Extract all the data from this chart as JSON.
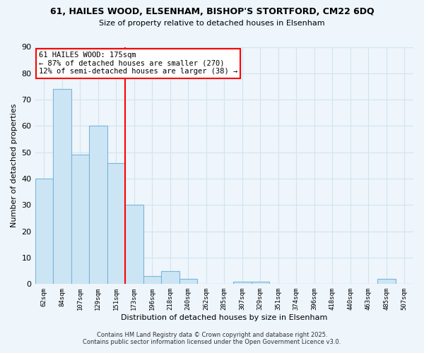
{
  "title_line1": "61, HAILES WOOD, ELSENHAM, BISHOP'S STORTFORD, CM22 6DQ",
  "title_line2": "Size of property relative to detached houses in Elsenham",
  "xlabel": "Distribution of detached houses by size in Elsenham",
  "ylabel": "Number of detached properties",
  "bin_labels": [
    "62sqm",
    "84sqm",
    "107sqm",
    "129sqm",
    "151sqm",
    "173sqm",
    "196sqm",
    "218sqm",
    "240sqm",
    "262sqm",
    "285sqm",
    "307sqm",
    "329sqm",
    "351sqm",
    "374sqm",
    "396sqm",
    "418sqm",
    "440sqm",
    "463sqm",
    "485sqm",
    "507sqm"
  ],
  "bar_heights": [
    40,
    74,
    49,
    60,
    46,
    30,
    3,
    5,
    2,
    0,
    0,
    1,
    1,
    0,
    0,
    0,
    0,
    0,
    0,
    2,
    0
  ],
  "bar_color": "#cce5f5",
  "bar_edge_color": "#7ab5d8",
  "highlight_line_color": "red",
  "highlight_bin_index": 5,
  "annotation_title": "61 HAILES WOOD: 175sqm",
  "annotation_line1": "← 87% of detached houses are smaller (270)",
  "annotation_line2": "12% of semi-detached houses are larger (38) →",
  "annotation_box_color": "white",
  "annotation_box_edge_color": "red",
  "ylim": [
    0,
    90
  ],
  "yticks": [
    0,
    10,
    20,
    30,
    40,
    50,
    60,
    70,
    80,
    90
  ],
  "footnote1": "Contains HM Land Registry data © Crown copyright and database right 2025.",
  "footnote2": "Contains public sector information licensed under the Open Government Licence v3.0.",
  "bg_color": "#eef5fb",
  "grid_color": "#d0e4f0"
}
